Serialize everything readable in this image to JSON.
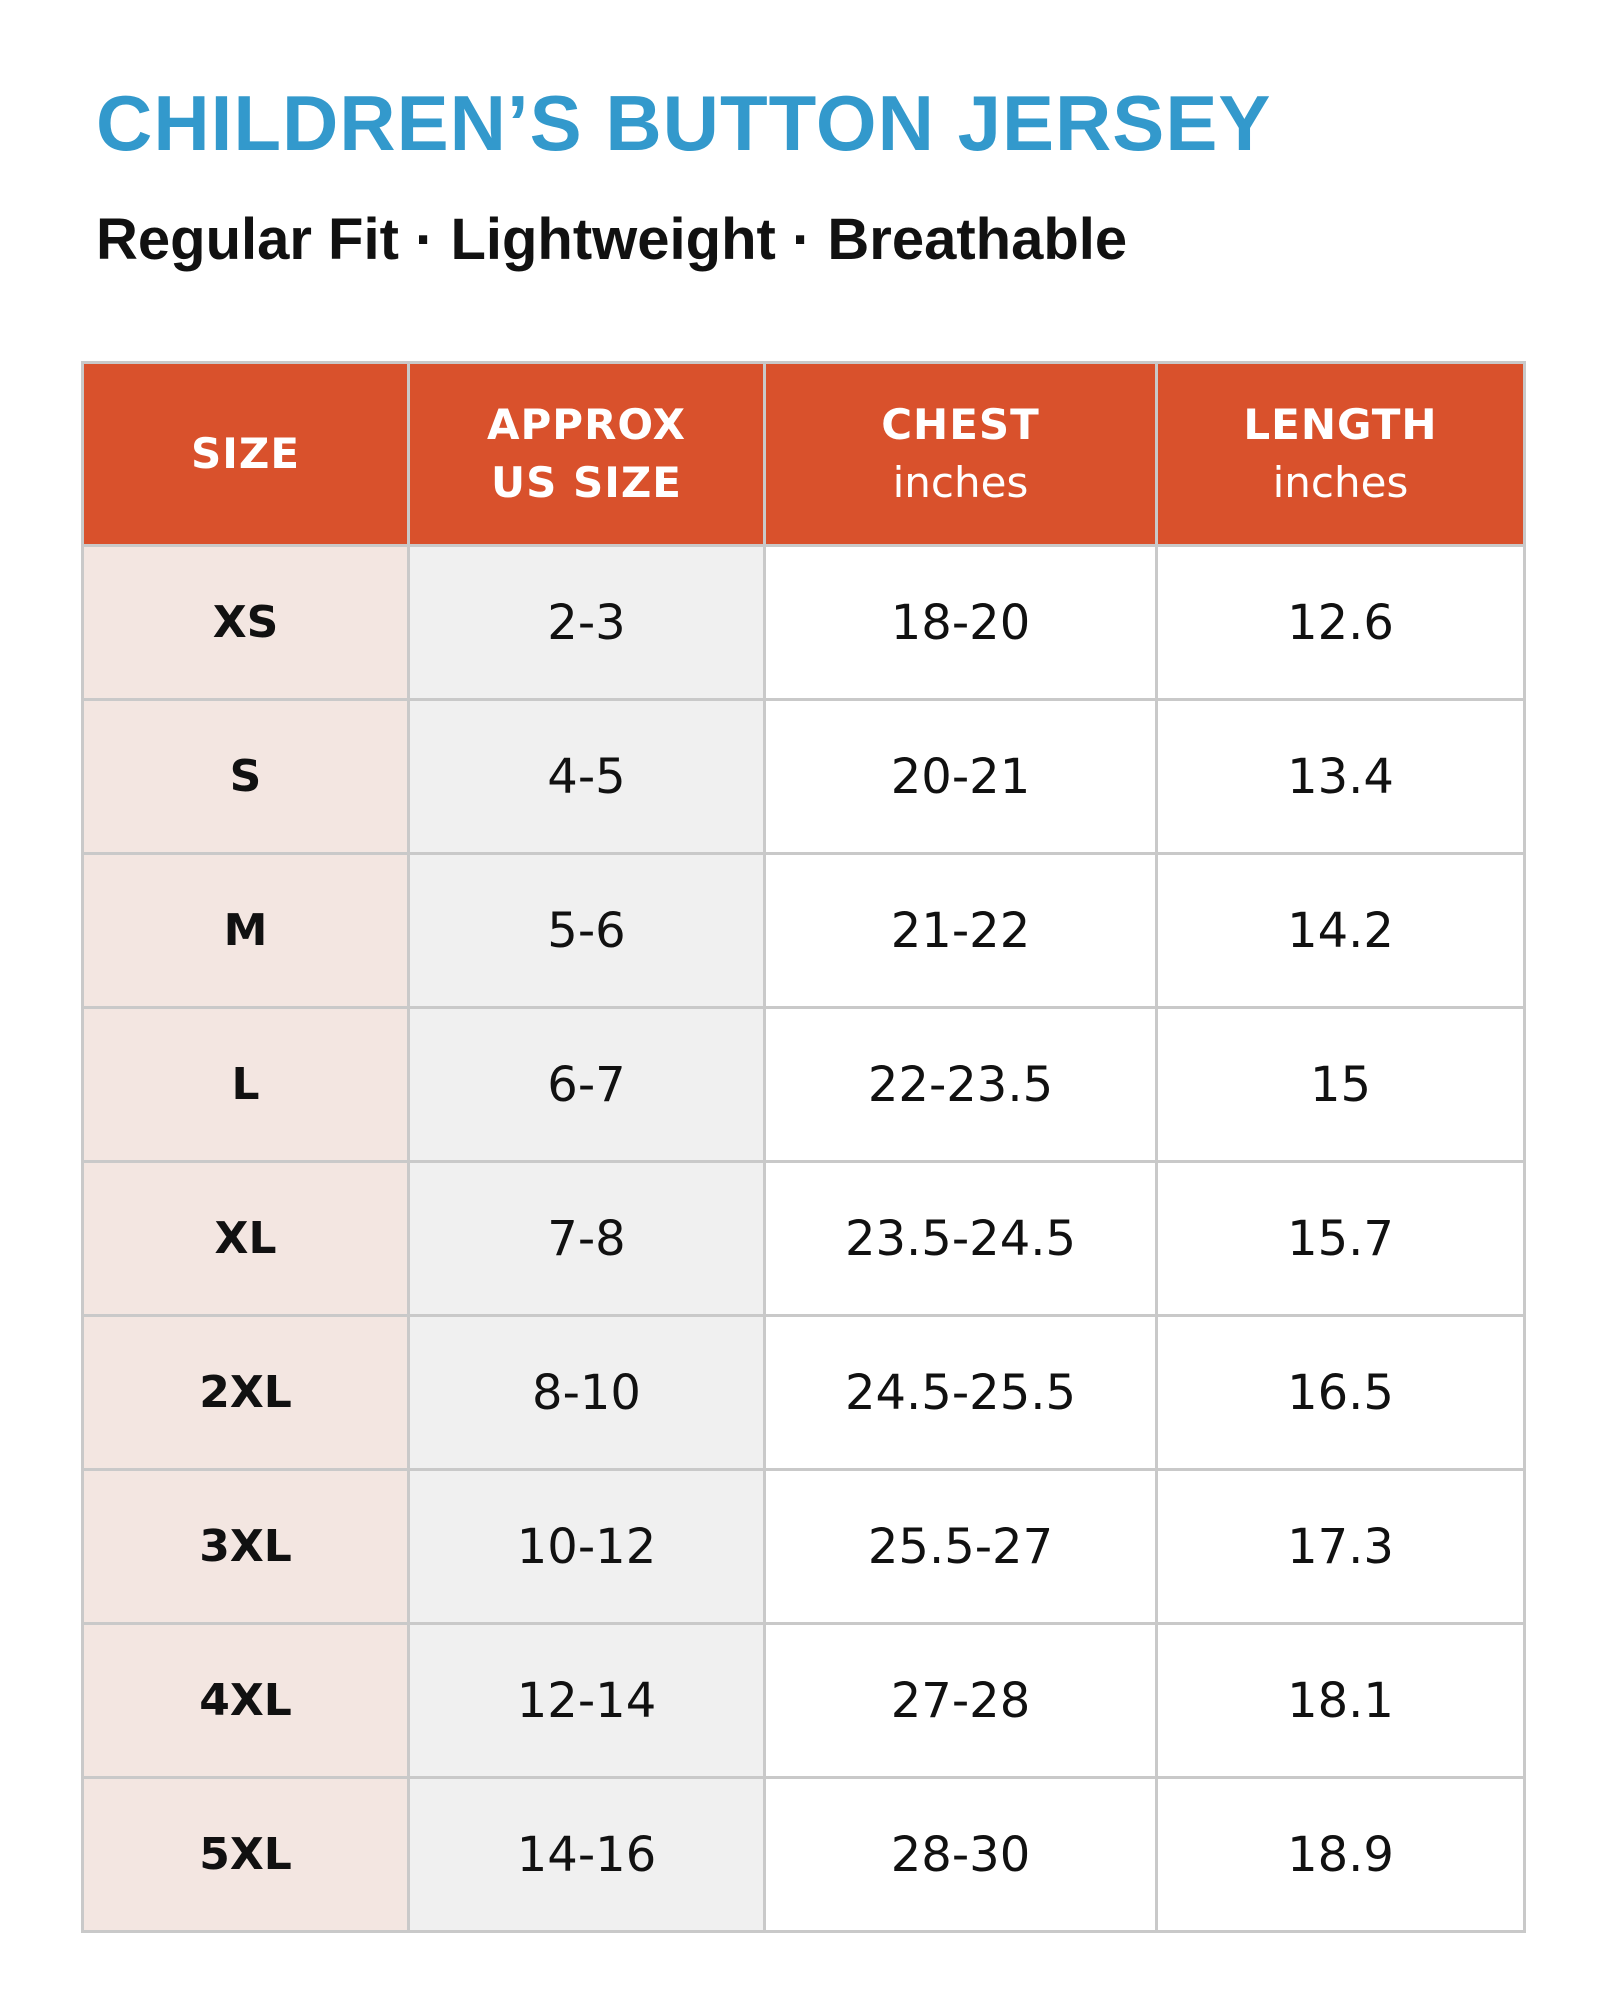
{
  "header": {
    "title": "CHILDREN’S BUTTON JERSEY",
    "subtitle": "Regular Fit · Lightweight · Breathable"
  },
  "table": {
    "columns": [
      {
        "name": [
          "SIZE"
        ]
      },
      {
        "name": [
          "APPROX",
          "US SIZE"
        ]
      },
      {
        "name": [
          "CHEST"
        ],
        "unit": "inches"
      },
      {
        "name": [
          "LENGTH"
        ],
        "unit": "inches"
      }
    ],
    "rows": [
      [
        "XS",
        "2-3",
        "18-20",
        12.6
      ],
      [
        "S",
        "4-5",
        "20-21",
        13.4
      ],
      [
        "M",
        "5-6",
        "21-22",
        14.2
      ],
      [
        "L",
        "6-7",
        "22-23.5",
        15
      ],
      [
        "XL",
        "7-8",
        "23.5-24.5",
        15.7
      ],
      [
        "2XL",
        "8-10",
        "24.5-25.5",
        16.5
      ],
      [
        "3XL",
        "10-12",
        "25.5-27",
        17.3
      ],
      [
        "4XL",
        "12-14",
        "27-28",
        18.1
      ],
      [
        "5XL",
        "14-16",
        "28-30",
        18.9
      ]
    ]
  }
}
